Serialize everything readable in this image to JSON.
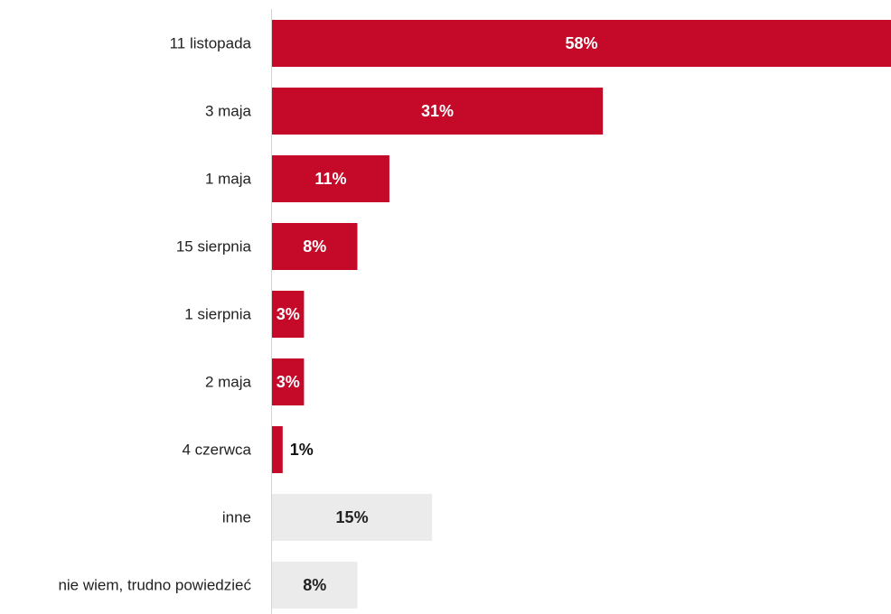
{
  "chart_data": {
    "type": "bar",
    "orientation": "horizontal",
    "categories": [
      "11 listopada",
      "3 maja",
      "1 maja",
      "15 sierpnia",
      "1 sierpnia",
      "2 maja",
      "4 czerwca",
      "inne",
      "nie wiem, trudno powiedzieć"
    ],
    "values": [
      58,
      31,
      11,
      8,
      3,
      3,
      1,
      15,
      8
    ],
    "value_labels": [
      "58%",
      "31%",
      "11%",
      "8%",
      "3%",
      "3%",
      "1%",
      "15%",
      "8%"
    ],
    "bar_colors": [
      "#c40a28",
      "#c40a28",
      "#c40a28",
      "#c40a28",
      "#c40a28",
      "#c40a28",
      "#c40a28",
      "#ebebeb",
      "#ebebeb"
    ],
    "value_label_colors": [
      "#ffffff",
      "#ffffff",
      "#ffffff",
      "#ffffff",
      "#ffffff",
      "#ffffff",
      "#111111",
      "#222222",
      "#222222"
    ],
    "xlim": [
      0,
      58
    ],
    "title": "",
    "xlabel": "",
    "ylabel": "",
    "grid": false,
    "legend": "none"
  },
  "colors": {
    "accent": "#c40a28",
    "neutral_bar": "#ebebeb",
    "axis_line": "#d4d4d4"
  }
}
